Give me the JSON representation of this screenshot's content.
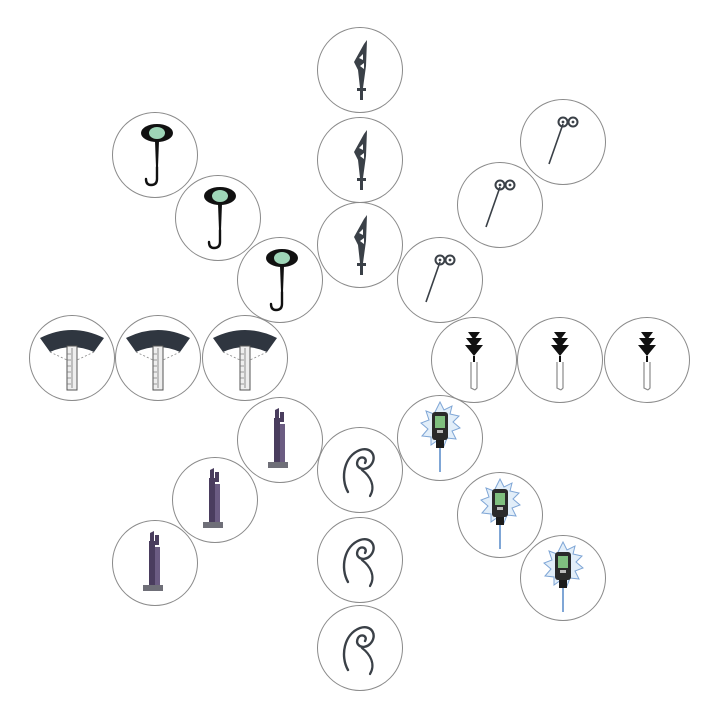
{
  "arms": [
    {
      "name": "top",
      "icon": "sword-icon"
    },
    {
      "name": "upper-right",
      "icon": "pin-needle-icon"
    },
    {
      "name": "right",
      "icon": "tree-probe-icon"
    },
    {
      "name": "lower-right",
      "icon": "digital-probe-icon"
    },
    {
      "name": "bottom",
      "icon": "spiral-hook-icon"
    },
    {
      "name": "lower-left",
      "icon": "tower-block-icon"
    },
    {
      "name": "left",
      "icon": "fan-gauge-icon"
    },
    {
      "name": "upper-left",
      "icon": "lamp-hook-icon"
    }
  ],
  "colors": {
    "dark": "#3a4047",
    "black": "#111111",
    "blue_glow": "#7fa6d6",
    "screen_green": "#7fbf7f",
    "purple": "#4a3d5e",
    "lamp_green": "#9fd6b8"
  }
}
